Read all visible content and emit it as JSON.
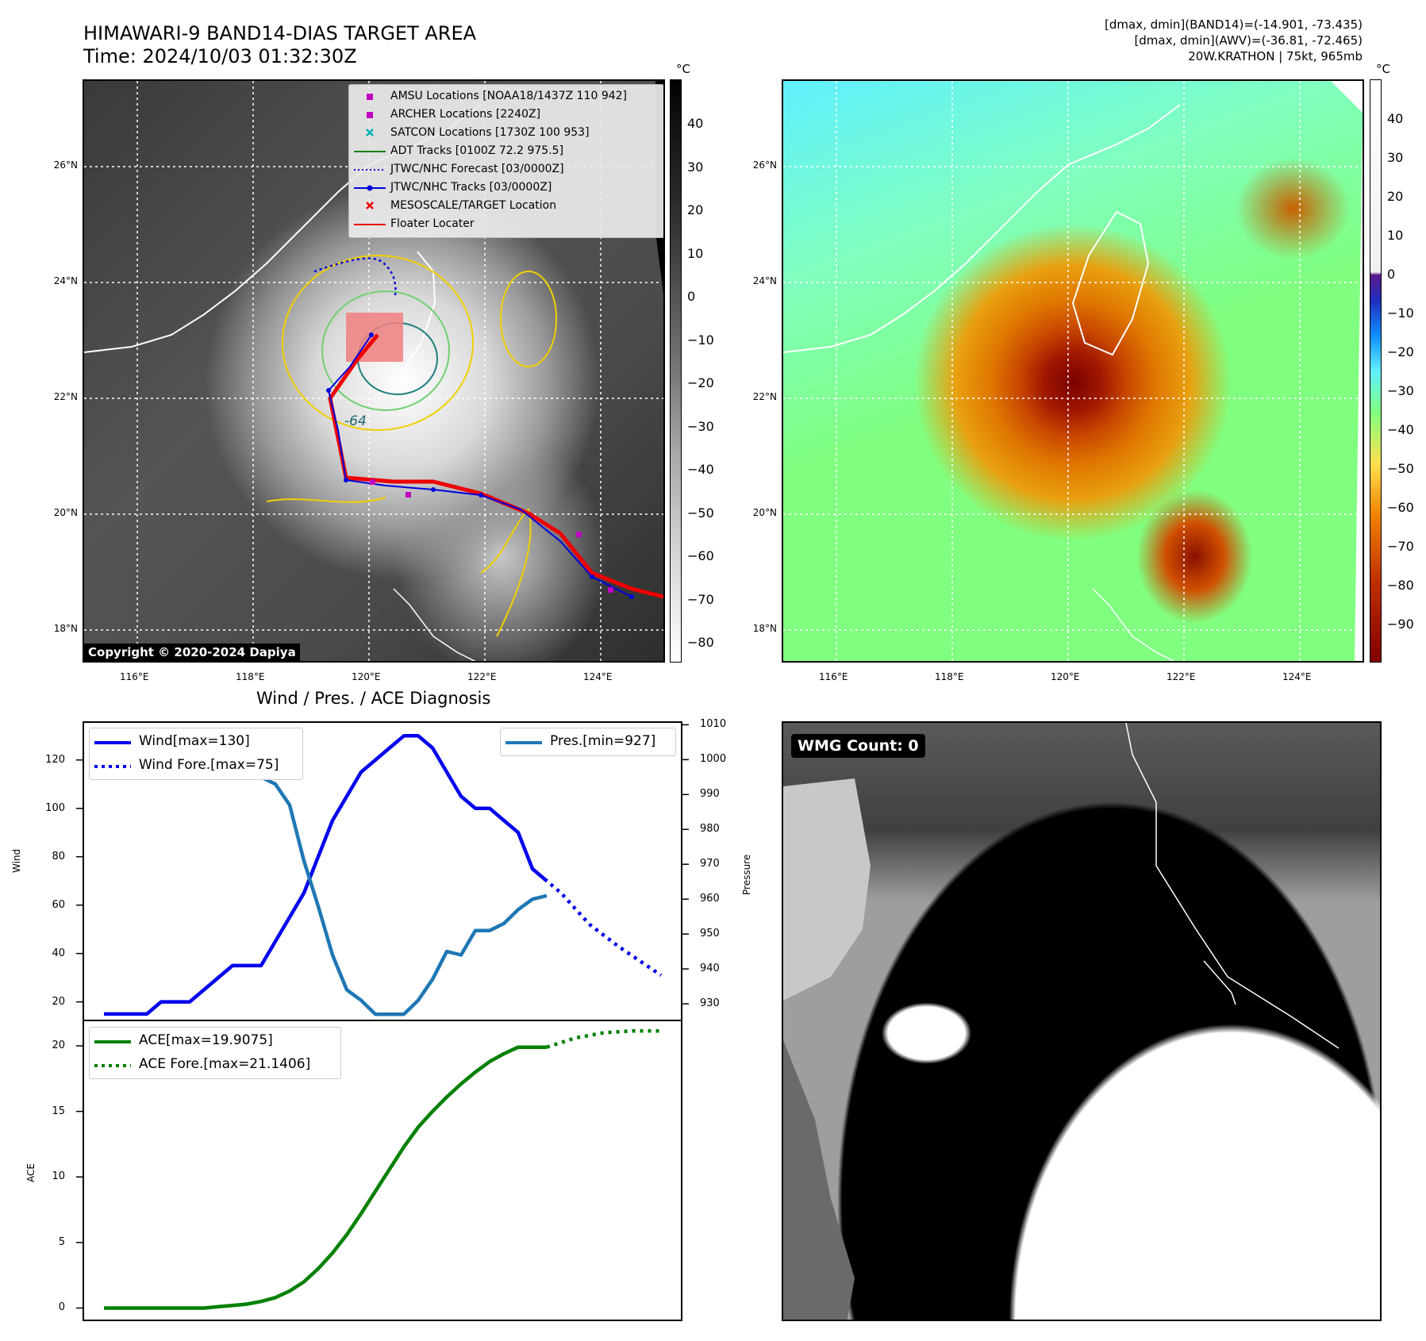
{
  "top_left": {
    "title_line1": "HIMAWARI-9 BAND14-DIAS TARGET AREA",
    "title_line2": "Time: 2024/10/03 01:32:30Z",
    "cbar_unit": "°C",
    "cbar_ticks": [
      "40",
      "30",
      "20",
      "10",
      "0",
      "−10",
      "−20",
      "−30",
      "−40",
      "−50",
      "−60",
      "−70",
      "−80"
    ],
    "lat_labels": [
      "26°N",
      "24°N",
      "22°N",
      "20°N",
      "18°N"
    ],
    "lon_labels": [
      "116°E",
      "118°E",
      "120°E",
      "122°E",
      "124°E"
    ],
    "contour_label": "-64",
    "copyright": "Copyright © 2020-2024 Dapiya",
    "legend": [
      {
        "label": "AMSU Locations [NOAA18/1437Z 110 942]",
        "marker": "square",
        "color": "#c000c0"
      },
      {
        "label": "ARCHER Locations [2240Z]",
        "marker": "square",
        "color": "#c000c0"
      },
      {
        "label": "SATCON Locations [1730Z 100 953]",
        "marker": "x",
        "color": "#00b0b0"
      },
      {
        "label": "ADT Tracks [0100Z 72.2 975.5]",
        "marker": "line",
        "color": "#108010"
      },
      {
        "label": "JTWC/NHC Forecast [03/0000Z]",
        "marker": "dotted",
        "color": "#0000dd"
      },
      {
        "label": "JTWC/NHC Tracks [03/0000Z]",
        "marker": "line-dot",
        "color": "#0000dd"
      },
      {
        "label": "MESOSCALE/TARGET Location",
        "marker": "x",
        "color": "#ee0000"
      },
      {
        "label": "Floater Locater",
        "marker": "line",
        "color": "#ee0000"
      }
    ]
  },
  "top_right": {
    "info_line1": "[dmax, dmin](BAND14)=(-14.901, -73.435)",
    "info_line2": "[dmax, dmin](AWV)=(-36.81, -72.465)",
    "info_line3": "20W.KRATHON | 75kt, 965mb",
    "cbar_unit": "°C",
    "cbar_ticks": [
      "40",
      "30",
      "20",
      "10",
      "0",
      "−10",
      "−20",
      "−30",
      "−40",
      "−50",
      "−60",
      "−70",
      "−80",
      "−90"
    ],
    "lat_labels": [
      "26°N",
      "24°N",
      "22°N",
      "20°N",
      "18°N"
    ],
    "lon_labels": [
      "116°E",
      "118°E",
      "120°E",
      "122°E",
      "124°E"
    ]
  },
  "bottom_right": {
    "wmg_label": "WMG Count: 0"
  },
  "chart_data": [
    {
      "type": "line",
      "title": "Wind / Pres. / ACE Diagnosis",
      "ylabel": "Wind",
      "y2label": "Pressure",
      "ylim": [
        12,
        136
      ],
      "y2lim": [
        925,
        1011
      ],
      "yticks": [
        20,
        40,
        60,
        80,
        100,
        120
      ],
      "y2ticks": [
        930,
        940,
        950,
        960,
        970,
        980,
        990,
        1000,
        1010
      ],
      "x": [
        0,
        1,
        2,
        3,
        4,
        5,
        6,
        7,
        8,
        9,
        10,
        11,
        12,
        13,
        14,
        15,
        16,
        17,
        18,
        19,
        20,
        21,
        22,
        23,
        24,
        25,
        26,
        27,
        28,
        29,
        30,
        31,
        32,
        33,
        34,
        35,
        36,
        37,
        38,
        39
      ],
      "series": [
        {
          "name": "Wind[max=130]",
          "color": "#0000ee",
          "style": "solid",
          "x": [
            0,
            1,
            2,
            3,
            4,
            5,
            6,
            7,
            8,
            9,
            10,
            11,
            12,
            13,
            14,
            15,
            16,
            17,
            18,
            19,
            20,
            21,
            22,
            23,
            24,
            25,
            26,
            27,
            28,
            29,
            30,
            31
          ],
          "values": [
            15,
            15,
            15,
            15,
            20,
            20,
            20,
            25,
            30,
            35,
            35,
            35,
            45,
            55,
            65,
            80,
            95,
            105,
            115,
            120,
            125,
            130,
            130,
            125,
            115,
            105,
            100,
            100,
            95,
            90,
            75,
            70
          ]
        },
        {
          "name": "Wind Fore.[max=75]",
          "color": "#0000ee",
          "style": "dotted",
          "x": [
            30,
            32,
            34,
            36,
            38,
            39
          ],
          "values": [
            75,
            65,
            52,
            43,
            35,
            31
          ]
        },
        {
          "name": "Pres.[min=927]",
          "color": "#1f77b4",
          "style": "solid",
          "axis": "right",
          "x": [
            0,
            1,
            2,
            3,
            4,
            5,
            6,
            7,
            8,
            9,
            10,
            11,
            12,
            13,
            14,
            15,
            16,
            17,
            18,
            19,
            20,
            21,
            22,
            23,
            24,
            25,
            26,
            27,
            28,
            29,
            30,
            31
          ],
          "values": [
            1008,
            1008,
            1008,
            1005,
            1005,
            1003,
            1003,
            1001,
            1000,
            1000,
            998,
            995,
            993,
            987,
            971,
            958,
            944,
            934,
            931,
            927,
            927,
            927,
            931,
            937,
            945,
            944,
            951,
            951,
            953,
            957,
            960,
            961
          ]
        }
      ]
    },
    {
      "type": "line",
      "ylabel": "ACE",
      "ylim": [
        -1,
        22
      ],
      "yticks": [
        0,
        5,
        10,
        15,
        20
      ],
      "series": [
        {
          "name": "ACE[max=19.9075]",
          "color": "#008000",
          "style": "solid",
          "x": [
            0,
            1,
            2,
            3,
            4,
            5,
            6,
            7,
            8,
            9,
            10,
            11,
            12,
            13,
            14,
            15,
            16,
            17,
            18,
            19,
            20,
            21,
            22,
            23,
            24,
            25,
            26,
            27,
            28,
            29,
            30,
            31
          ],
          "values": [
            0,
            0,
            0,
            0,
            0,
            0,
            0,
            0,
            0.1,
            0.2,
            0.3,
            0.5,
            0.8,
            1.3,
            2.0,
            3.0,
            4.2,
            5.6,
            7.2,
            8.9,
            10.6,
            12.3,
            13.8,
            15.0,
            16.1,
            17.1,
            18.0,
            18.8,
            19.4,
            19.9,
            19.9,
            19.9
          ]
        },
        {
          "name": "ACE Fore.[max=21.1406]",
          "color": "#008000",
          "style": "dotted",
          "x": [
            31,
            33,
            35,
            37,
            39
          ],
          "values": [
            19.9,
            20.6,
            21.0,
            21.14,
            21.14
          ]
        }
      ]
    }
  ]
}
